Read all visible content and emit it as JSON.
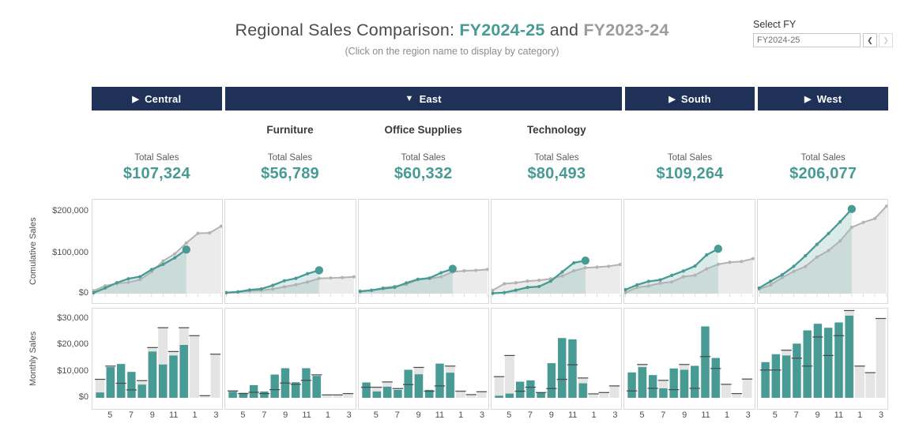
{
  "header": {
    "title_prefix": "Regional Sales Comparison: ",
    "fy_current": "FY2024-25",
    "title_and": " and ",
    "fy_previous": "FY2023-24",
    "subtitle": "(Click on the region name to display by category)"
  },
  "filter": {
    "label": "Select FY",
    "value": "FY2024-25",
    "prev_icon": "❮",
    "next_icon": "❯"
  },
  "regions": [
    {
      "label": "Central",
      "arrow": "▶",
      "expanded": false
    },
    {
      "label": "East",
      "arrow": "▼",
      "expanded": true
    },
    {
      "label": "South",
      "arrow": "▶",
      "expanded": false
    },
    {
      "label": "West",
      "arrow": "▶",
      "expanded": false
    }
  ],
  "columns": [
    {
      "category": "",
      "total_label": "Total Sales",
      "total": "$107,324"
    },
    {
      "category": "Furniture",
      "total_label": "Total Sales",
      "total": "$56,789"
    },
    {
      "category": "Office Supplies",
      "total_label": "Total Sales",
      "total": "$60,332"
    },
    {
      "category": "Technology",
      "total_label": "Total Sales",
      "total": "$80,493"
    },
    {
      "category": "",
      "total_label": "Total Sales",
      "total": "$109,264"
    },
    {
      "category": "",
      "total_label": "Total Sales",
      "total": "$206,077"
    }
  ],
  "axis": {
    "cumulative_label": "Comulative Sales",
    "monthly_label": "Monthly Sales",
    "cumulative_ticks": [
      "$200,000",
      "$100,000",
      "$0"
    ],
    "monthly_ticks": [
      "$30,000",
      "$20,000",
      "$10,000",
      "$0"
    ]
  },
  "colors": {
    "navy": "#1f3156",
    "teal": "#479b94",
    "teal_area": "rgba(71,155,148,0.20)",
    "gray_line": "#b3b3b3",
    "gray_area": "#ebebeb",
    "gray_bar": "#e4e4e4",
    "ref_tick": "#4a4a4a"
  },
  "chart_data": {
    "type": "combo (cumulative area-line row + monthly bar row)",
    "x_months": [
      "4",
      "5",
      "6",
      "7",
      "8",
      "9",
      "10",
      "11",
      "12",
      "1",
      "2",
      "3"
    ],
    "x_ticks_shown": [
      "5",
      "7",
      "9",
      "11",
      "1",
      "3"
    ],
    "series_names": [
      "FY2024-25",
      "FY2023-24"
    ],
    "cumulative_row": {
      "type": "area-line",
      "ylabel": "Comulative Sales",
      "ylim": [
        0,
        200000
      ],
      "yticks": [
        0,
        100000,
        200000
      ]
    },
    "monthly_row": {
      "type": "bar",
      "ylabel": "Monthly Sales",
      "ylim": [
        0,
        30000
      ],
      "yticks": [
        0,
        10000,
        20000,
        30000
      ],
      "note": "gray bar + dark tick = FY2023-24, teal bar = FY2024-25"
    },
    "panels": [
      {
        "label": "Central",
        "total_fy2024_25": 107324,
        "monthly_fy2024_25": [
          2024,
          11600,
          12800,
          9800,
          5000,
          17500,
          12600,
          16000,
          20000,
          null,
          null,
          null
        ],
        "monthly_fy2023_24": [
          7000,
          12000,
          5500,
          3000,
          6500,
          19000,
          26500,
          17500,
          26500,
          23500,
          800,
          16500
        ]
      },
      {
        "label": "Furniture",
        "total_fy2024_25": 56789,
        "monthly_fy2024_25": [
          2300,
          1900,
          4800,
          2400,
          8800,
          11200,
          5900,
          11200,
          8289,
          null,
          null,
          null
        ],
        "monthly_fy2023_24": [
          2600,
          1600,
          2100,
          1600,
          3100,
          5600,
          5100,
          6600,
          8700,
          1100,
          1100,
          1600
        ]
      },
      {
        "label": "Office Supplies",
        "total_fy2024_25": 60332,
        "monthly_fy2024_25": [
          5800,
          2400,
          4200,
          3000,
          10600,
          8900,
          3000,
          12932,
          9500,
          null,
          null,
          null
        ],
        "monthly_fy2023_24": [
          4000,
          4000,
          6000,
          3500,
          5000,
          11500,
          2500,
          4500,
          12000,
          2500,
          1200,
          2300
        ]
      },
      {
        "label": "Technology",
        "total_fy2024_25": 80493,
        "monthly_fy2024_25": [
          800,
          1600,
          6100,
          6600,
          2100,
          13100,
          22600,
          22100,
          5493,
          null,
          null,
          null
        ],
        "monthly_fy2023_24": [
          8000,
          16000,
          2500,
          4000,
          2000,
          3500,
          7000,
          12500,
          7500,
          1500,
          2000,
          4500
        ]
      },
      {
        "label": "South",
        "total_fy2024_25": 109264,
        "monthly_fy2024_25": [
          9600,
          11600,
          8600,
          3600,
          11100,
          10600,
          12100,
          27000,
          15064,
          null,
          null,
          null
        ],
        "monthly_fy2023_24": [
          2600,
          12600,
          3600,
          6600,
          3100,
          12600,
          3600,
          15600,
          11100,
          5100,
          1600,
          7100
        ]
      },
      {
        "label": "West",
        "total_fy2024_25": 206077,
        "monthly_fy2024_25": [
          13500,
          16500,
          16000,
          20500,
          25500,
          28000,
          26500,
          28500,
          31077,
          null,
          null,
          null
        ],
        "monthly_fy2023_24": [
          10500,
          10500,
          18000,
          15000,
          12000,
          23000,
          16000,
          23500,
          33000,
          12000,
          9500,
          30000
        ]
      }
    ]
  }
}
